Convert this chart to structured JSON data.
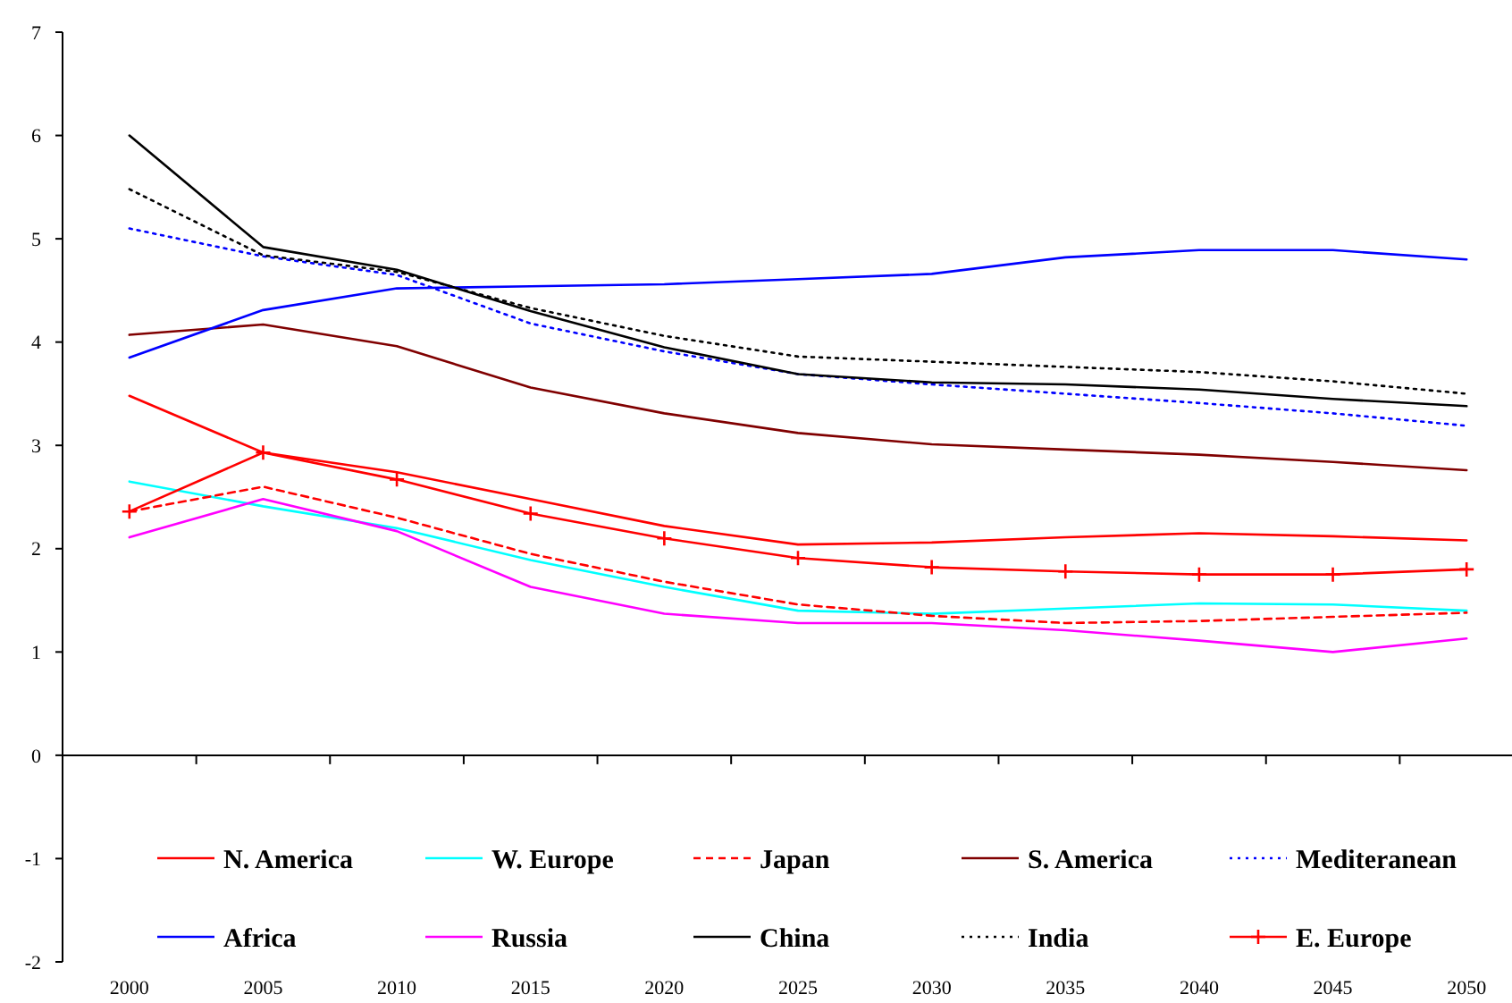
{
  "chart_data": {
    "type": "line",
    "categories": [
      "2000",
      "2005",
      "2010",
      "2015",
      "2020",
      "2025",
      "2030",
      "2035",
      "2040",
      "2045",
      "2050"
    ],
    "ylim": [
      -2,
      7
    ],
    "yticks": [
      -2,
      -1,
      0,
      1,
      2,
      3,
      4,
      5,
      6,
      7
    ],
    "legend": "bottom",
    "series": [
      {
        "name": "N. America",
        "color": "#ff0000",
        "line_style": "solid",
        "values": [
          3.48,
          2.93,
          2.74,
          2.48,
          2.22,
          2.04,
          2.06,
          2.11,
          2.15,
          2.12,
          2.08
        ]
      },
      {
        "name": "W. Europe",
        "color": "#00ffff",
        "line_style": "solid",
        "values": [
          2.65,
          2.41,
          2.2,
          1.89,
          1.63,
          1.4,
          1.37,
          1.42,
          1.47,
          1.46,
          1.4
        ]
      },
      {
        "name": "Japan",
        "color": "#ff0000",
        "line_style": "dashed",
        "values": [
          2.36,
          2.6,
          2.3,
          1.95,
          1.68,
          1.46,
          1.35,
          1.28,
          1.3,
          1.34,
          1.38
        ]
      },
      {
        "name": "S. America",
        "color": "#800000",
        "line_style": "solid",
        "values": [
          4.07,
          4.17,
          3.96,
          3.56,
          3.31,
          3.12,
          3.01,
          2.96,
          2.91,
          2.84,
          2.76
        ]
      },
      {
        "name": "Mediteranean",
        "color": "#0000ff",
        "line_style": "dotted",
        "values": [
          5.1,
          4.83,
          4.65,
          4.18,
          3.91,
          3.69,
          3.59,
          3.5,
          3.41,
          3.31,
          3.19
        ]
      },
      {
        "name": "Africa",
        "color": "#0000ff",
        "line_style": "solid",
        "values": [
          3.85,
          4.31,
          4.52,
          4.54,
          4.56,
          4.61,
          4.66,
          4.82,
          4.89,
          4.89,
          4.8
        ]
      },
      {
        "name": "Russia",
        "color": "#ff00ff",
        "line_style": "solid",
        "values": [
          2.11,
          2.48,
          2.17,
          1.63,
          1.37,
          1.28,
          1.28,
          1.21,
          1.11,
          1.0,
          1.13
        ]
      },
      {
        "name": "China",
        "color": "#000000",
        "line_style": "solid",
        "values": [
          6.0,
          4.92,
          4.7,
          4.3,
          3.95,
          3.69,
          3.61,
          3.59,
          3.54,
          3.45,
          3.38
        ]
      },
      {
        "name": "India",
        "color": "#000000",
        "line_style": "dotted",
        "values": [
          5.48,
          4.84,
          4.68,
          4.33,
          4.06,
          3.86,
          3.81,
          3.76,
          3.71,
          3.62,
          3.5
        ]
      },
      {
        "name": "E. Europe",
        "color": "#ff0000",
        "line_style": "solid",
        "marker": "cross",
        "values": [
          2.36,
          2.93,
          2.67,
          2.34,
          2.1,
          1.91,
          1.82,
          1.78,
          1.75,
          1.75,
          1.8
        ]
      }
    ]
  }
}
